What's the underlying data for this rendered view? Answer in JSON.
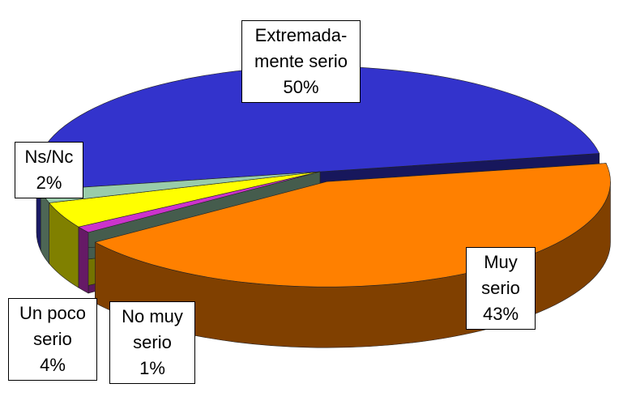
{
  "chart_data": {
    "type": "pie3d",
    "categories": [
      "Extremada-\nmente serio",
      "Muy serio",
      "No muy\nserio",
      "Un poco\nserio",
      "Ns/Nc"
    ],
    "values": [
      50,
      43,
      1,
      4,
      2
    ],
    "value_labels": [
      "50%",
      "43%",
      "1%",
      "4%",
      "2%"
    ],
    "colors": [
      "#3333cc",
      "#ff8000",
      "#cc33cc",
      "#ffff00",
      "#99ccaa"
    ]
  }
}
